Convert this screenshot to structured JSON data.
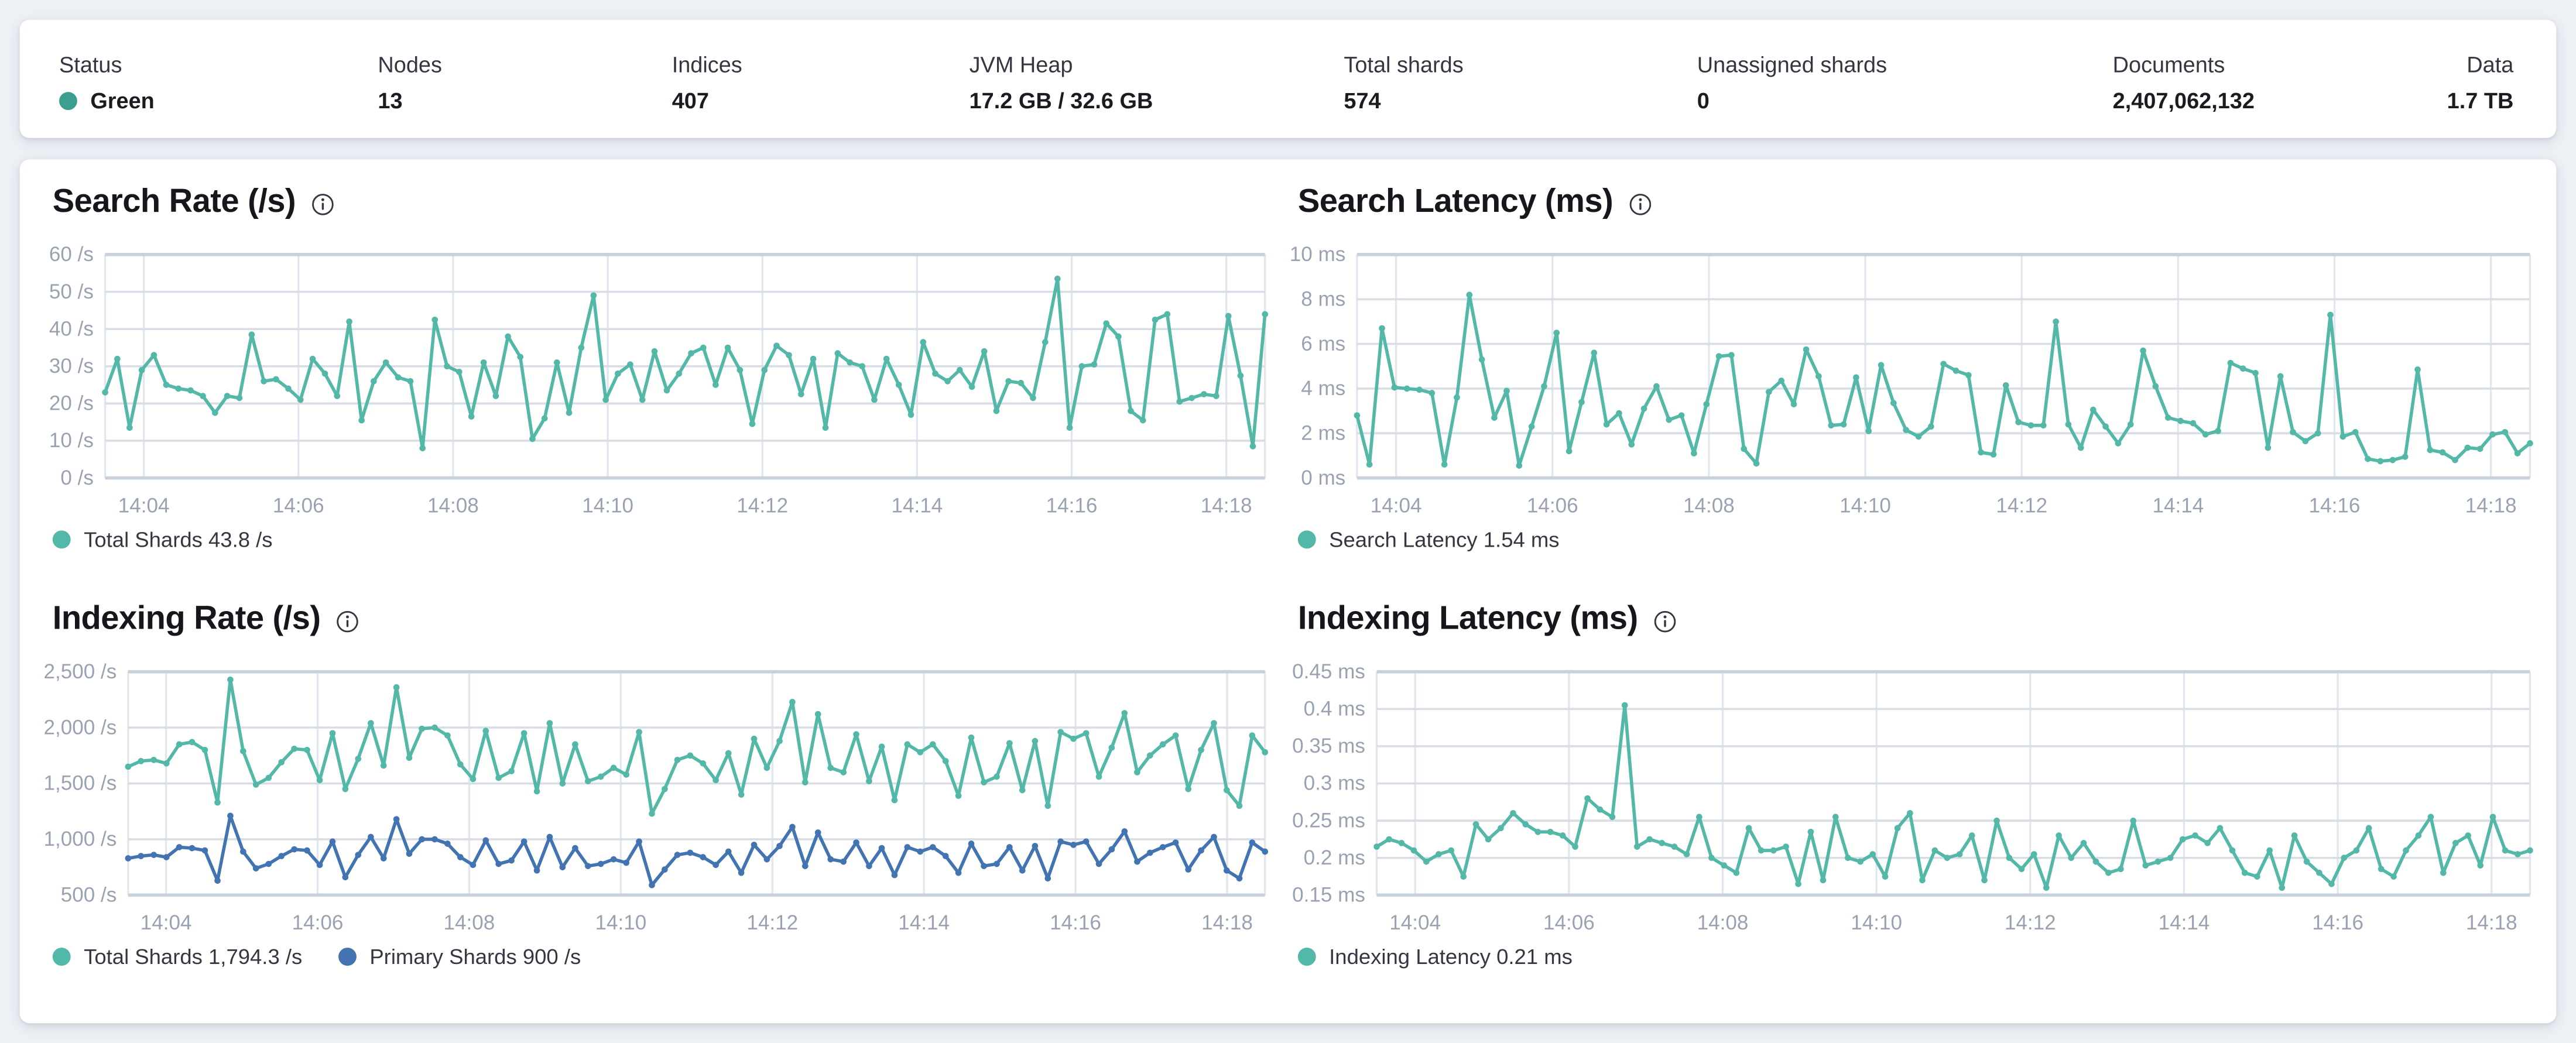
{
  "header": {
    "stats": [
      {
        "label": "Status",
        "value": "Green",
        "type": "status"
      },
      {
        "label": "Nodes",
        "value": "13"
      },
      {
        "label": "Indices",
        "value": "407"
      },
      {
        "label": "JVM Heap",
        "value": "17.2 GB / 32.6 GB"
      },
      {
        "label": "Total shards",
        "value": "574"
      },
      {
        "label": "Unassigned shards",
        "value": "0"
      },
      {
        "label": "Documents",
        "value": "2,407,062,132"
      },
      {
        "label": "Data",
        "value": "1.7 TB"
      }
    ]
  },
  "colors": {
    "status_green_dot": "#3c9e8e",
    "teal_line": "#54b8a8",
    "blue_line": "#4374b2",
    "axis_label": "#98a2b3",
    "grid_minor": "#e2e6ee",
    "grid_major": "#d8dde6",
    "grid_edge": "#c9d1dc"
  },
  "chart_data": [
    {
      "type": "line",
      "title": "Search Rate (/s)",
      "info_icon": "info-in-circle",
      "xlabel": "",
      "ylabel": "/s",
      "ylim": [
        0,
        60
      ],
      "grid": true,
      "legend_position": "bottom",
      "x_ticks": [
        "14:04",
        "14:06",
        "14:08",
        "14:10",
        "14:12",
        "14:14",
        "14:16",
        "14:18"
      ],
      "y_ticks": [
        {
          "value": 60,
          "label": "60 /s"
        },
        {
          "value": 50,
          "label": "50 /s"
        },
        {
          "value": 40,
          "label": "40 /s"
        },
        {
          "value": 30,
          "label": "30 /s"
        },
        {
          "value": 20,
          "label": "20 /s"
        },
        {
          "value": 10,
          "label": "10 /s"
        },
        {
          "value": 0,
          "label": "0 /s"
        }
      ],
      "series": [
        {
          "name": "Total Shards",
          "legend": "Total Shards 43.8 /s",
          "current_value": "43.8 /s",
          "color": "#54b8a8",
          "values": [
            23,
            32,
            13.5,
            29,
            33,
            25,
            24,
            23.5,
            22,
            17.5,
            22,
            21.5,
            38.5,
            26,
            26.5,
            24,
            21,
            32,
            28,
            22,
            42,
            15.5,
            26,
            31,
            27,
            26,
            8,
            42.5,
            30,
            28.5,
            16.5,
            31,
            22,
            38,
            32.5,
            10.5,
            16,
            31,
            17.5,
            35,
            49,
            21,
            28,
            30.5,
            21,
            34,
            23.5,
            28,
            33.5,
            35,
            25,
            35,
            29,
            14.5,
            29,
            35.5,
            33,
            22.5,
            32,
            13.5,
            33.5,
            31,
            30,
            21,
            32,
            25,
            17,
            36.5,
            28,
            26,
            29,
            24.5,
            34,
            18,
            26,
            25.5,
            21.5,
            36.5,
            53.5,
            13.5,
            30,
            30.5,
            41.5,
            38,
            18,
            15.5,
            42.5,
            44,
            20.5,
            21.5,
            22.5,
            22,
            43.5,
            27.5,
            8.5,
            44
          ]
        }
      ]
    },
    {
      "type": "line",
      "title": "Search Latency (ms)",
      "info_icon": "info-in-circle",
      "xlabel": "",
      "ylabel": "ms",
      "ylim": [
        0,
        10
      ],
      "grid": true,
      "legend_position": "bottom",
      "x_ticks": [
        "14:04",
        "14:06",
        "14:08",
        "14:10",
        "14:12",
        "14:14",
        "14:16",
        "14:18"
      ],
      "y_ticks": [
        {
          "value": 10,
          "label": "10 ms"
        },
        {
          "value": 8,
          "label": "8 ms"
        },
        {
          "value": 6,
          "label": "6 ms"
        },
        {
          "value": 4,
          "label": "4 ms"
        },
        {
          "value": 2,
          "label": "2 ms"
        },
        {
          "value": 0,
          "label": "0 ms"
        }
      ],
      "series": [
        {
          "name": "Search Latency",
          "legend": "Search Latency 1.54 ms",
          "current_value": "1.54 ms",
          "color": "#54b8a8",
          "values": [
            2.8,
            0.6,
            6.7,
            4.05,
            4.0,
            3.95,
            3.8,
            0.6,
            3.6,
            8.2,
            5.3,
            2.7,
            3.9,
            0.55,
            2.3,
            4.1,
            6.5,
            1.2,
            3.4,
            5.6,
            2.4,
            2.9,
            1.5,
            3.1,
            4.1,
            2.6,
            2.8,
            1.1,
            3.3,
            5.45,
            5.5,
            1.3,
            0.65,
            3.85,
            4.35,
            3.3,
            5.75,
            4.55,
            2.35,
            2.4,
            4.5,
            2.1,
            5.05,
            3.35,
            2.15,
            1.85,
            2.3,
            5.1,
            4.8,
            4.6,
            1.15,
            1.05,
            4.15,
            2.5,
            2.35,
            2.35,
            7.0,
            2.4,
            1.35,
            3.05,
            2.3,
            1.55,
            2.4,
            5.7,
            4.1,
            2.7,
            2.55,
            2.45,
            1.95,
            2.1,
            5.15,
            4.9,
            4.7,
            1.35,
            4.55,
            2.05,
            1.65,
            2.0,
            7.3,
            1.85,
            2.05,
            0.85,
            0.75,
            0.8,
            0.95,
            4.85,
            1.25,
            1.15,
            0.8,
            1.35,
            1.3,
            1.95,
            2.05,
            1.1,
            1.55
          ]
        }
      ]
    },
    {
      "type": "line",
      "title": "Indexing Rate (/s)",
      "info_icon": "info-in-circle",
      "xlabel": "",
      "ylabel": "/s",
      "ylim": [
        500,
        2500
      ],
      "grid": true,
      "legend_position": "bottom",
      "x_ticks": [
        "14:04",
        "14:06",
        "14:08",
        "14:10",
        "14:12",
        "14:14",
        "14:16",
        "14:18"
      ],
      "y_ticks": [
        {
          "value": 2500,
          "label": "2,500 /s"
        },
        {
          "value": 2000,
          "label": "2,000 /s"
        },
        {
          "value": 1500,
          "label": "1,500 /s"
        },
        {
          "value": 1000,
          "label": "1,000 /s"
        },
        {
          "value": 500,
          "label": "500 /s"
        }
      ],
      "series": [
        {
          "name": "Total Shards",
          "legend": "Total Shards 1,794.3 /s",
          "current_value": "1,794.3 /s",
          "color": "#54b8a8",
          "values": [
            1650,
            1700,
            1710,
            1680,
            1850,
            1870,
            1800,
            1330,
            2430,
            1790,
            1490,
            1550,
            1690,
            1810,
            1800,
            1530,
            1950,
            1450,
            1720,
            2040,
            1660,
            2360,
            1730,
            1990,
            2000,
            1930,
            1670,
            1540,
            1970,
            1550,
            1610,
            1950,
            1430,
            2040,
            1500,
            1850,
            1520,
            1560,
            1640,
            1580,
            1960,
            1230,
            1450,
            1710,
            1750,
            1680,
            1530,
            1770,
            1400,
            1900,
            1640,
            1880,
            2230,
            1510,
            2120,
            1640,
            1600,
            1940,
            1520,
            1830,
            1350,
            1850,
            1780,
            1850,
            1700,
            1390,
            1910,
            1510,
            1560,
            1860,
            1440,
            1880,
            1300,
            1960,
            1900,
            1950,
            1560,
            1820,
            2130,
            1600,
            1750,
            1850,
            1930,
            1450,
            1800,
            2040,
            1440,
            1300,
            1930,
            1780
          ]
        },
        {
          "name": "Primary Shards",
          "legend": "Primary Shards 900 /s",
          "current_value": "900 /s",
          "color": "#4374b2",
          "values": [
            830,
            850,
            860,
            840,
            930,
            920,
            900,
            630,
            1210,
            890,
            740,
            780,
            850,
            910,
            900,
            770,
            980,
            660,
            860,
            1020,
            830,
            1180,
            870,
            1000,
            1000,
            960,
            840,
            770,
            990,
            780,
            810,
            980,
            720,
            1020,
            750,
            920,
            760,
            780,
            820,
            790,
            980,
            590,
            730,
            860,
            880,
            840,
            770,
            890,
            700,
            950,
            820,
            940,
            1110,
            760,
            1060,
            820,
            800,
            970,
            760,
            920,
            680,
            930,
            890,
            930,
            850,
            700,
            960,
            760,
            780,
            930,
            720,
            940,
            650,
            980,
            950,
            980,
            780,
            910,
            1070,
            800,
            880,
            930,
            970,
            730,
            900,
            1020,
            720,
            650,
            970,
            890
          ]
        }
      ]
    },
    {
      "type": "line",
      "title": "Indexing Latency (ms)",
      "info_icon": "info-in-circle",
      "xlabel": "",
      "ylabel": "ms",
      "ylim": [
        0.15,
        0.45
      ],
      "grid": true,
      "legend_position": "bottom",
      "x_ticks": [
        "14:04",
        "14:06",
        "14:08",
        "14:10",
        "14:12",
        "14:14",
        "14:16",
        "14:18"
      ],
      "y_ticks": [
        {
          "value": 0.45,
          "label": "0.45 ms"
        },
        {
          "value": 0.4,
          "label": "0.4 ms"
        },
        {
          "value": 0.35,
          "label": "0.35 ms"
        },
        {
          "value": 0.3,
          "label": "0.3 ms"
        },
        {
          "value": 0.25,
          "label": "0.25 ms"
        },
        {
          "value": 0.2,
          "label": "0.2 ms"
        },
        {
          "value": 0.15,
          "label": "0.15 ms"
        }
      ],
      "series": [
        {
          "name": "Indexing Latency",
          "legend": "Indexing Latency 0.21 ms",
          "current_value": "0.21 ms",
          "color": "#54b8a8",
          "values": [
            0.215,
            0.225,
            0.22,
            0.21,
            0.195,
            0.205,
            0.21,
            0.175,
            0.245,
            0.225,
            0.24,
            0.26,
            0.245,
            0.235,
            0.235,
            0.23,
            0.215,
            0.28,
            0.265,
            0.255,
            0.405,
            0.215,
            0.225,
            0.22,
            0.215,
            0.205,
            0.255,
            0.2,
            0.19,
            0.18,
            0.24,
            0.21,
            0.21,
            0.215,
            0.165,
            0.235,
            0.17,
            0.255,
            0.2,
            0.195,
            0.205,
            0.175,
            0.24,
            0.26,
            0.17,
            0.21,
            0.2,
            0.205,
            0.23,
            0.17,
            0.25,
            0.2,
            0.185,
            0.205,
            0.16,
            0.23,
            0.2,
            0.22,
            0.195,
            0.18,
            0.185,
            0.25,
            0.19,
            0.195,
            0.2,
            0.225,
            0.23,
            0.22,
            0.24,
            0.21,
            0.18,
            0.175,
            0.21,
            0.16,
            0.23,
            0.195,
            0.18,
            0.165,
            0.2,
            0.21,
            0.24,
            0.185,
            0.175,
            0.21,
            0.23,
            0.255,
            0.18,
            0.22,
            0.23,
            0.19,
            0.255,
            0.21,
            0.205,
            0.21
          ]
        }
      ]
    }
  ]
}
